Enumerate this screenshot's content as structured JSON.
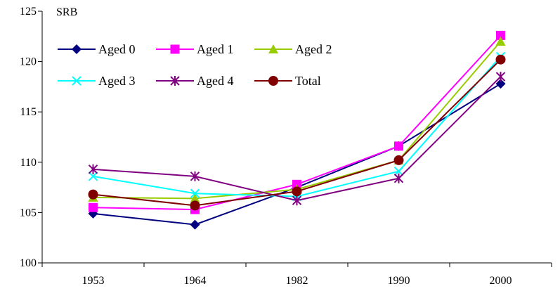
{
  "chart_data": {
    "type": "line",
    "title": "",
    "xlabel": "",
    "ylabel": "SRB",
    "categories": [
      "1953",
      "1964",
      "1982",
      "1990",
      "2000"
    ],
    "ylim": [
      100,
      125
    ],
    "yticks": [
      100,
      105,
      110,
      115,
      120,
      125
    ],
    "grid": false,
    "legend_position": "top-left",
    "series": [
      {
        "name": "Aged 0",
        "color": "#000080",
        "marker": "diamond",
        "values": [
          104.9,
          103.8,
          107.5,
          111.6,
          117.8
        ]
      },
      {
        "name": "Aged 1",
        "color": "#ff00ff",
        "marker": "square",
        "values": [
          105.5,
          105.3,
          107.8,
          111.6,
          122.6
        ]
      },
      {
        "name": "Aged 2",
        "color": "#99cc00",
        "marker": "triangle",
        "values": [
          106.5,
          106.4,
          107.3,
          110.2,
          122.0
        ]
      },
      {
        "name": "Aged 3",
        "color": "#00ffff",
        "marker": "x",
        "values": [
          108.6,
          106.9,
          106.6,
          109.1,
          120.5
        ]
      },
      {
        "name": "Aged 4",
        "color": "#800080",
        "marker": "star",
        "values": [
          109.3,
          108.6,
          106.2,
          108.4,
          118.5
        ]
      },
      {
        "name": "Total",
        "color": "#800000",
        "marker": "circle",
        "values": [
          106.8,
          105.7,
          107.1,
          110.2,
          120.2
        ]
      }
    ]
  }
}
